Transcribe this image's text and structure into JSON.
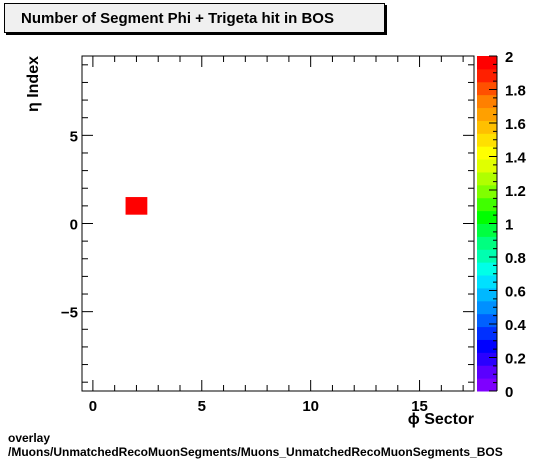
{
  "chart_data": {
    "type": "heatmap",
    "title": "Number of Segment Phi + Trigeta hit in BOS",
    "xlabel": "ϕ Sector",
    "ylabel": "η Index",
    "xlim": [
      -0.5,
      17.5
    ],
    "ylim": [
      -9.5,
      9.5
    ],
    "x_ticks": [
      0,
      5,
      10,
      15
    ],
    "y_ticks": [
      -5,
      0,
      5
    ],
    "bins": [
      {
        "x": 2,
        "y": 1,
        "value": 2
      }
    ],
    "z_range": [
      0,
      2
    ],
    "z_ticks": [
      0,
      0.2,
      0.4,
      0.6,
      0.8,
      1,
      1.2,
      1.4,
      1.6,
      1.8,
      2
    ],
    "palette": [
      "#7f00ff",
      "#5a00ff",
      "#2a00ff",
      "#0000ff",
      "#0030ff",
      "#0060ff",
      "#0090ff",
      "#00b8ff",
      "#00e0ff",
      "#00ffe8",
      "#00ffb0",
      "#00ff80",
      "#00ff40",
      "#00ff00",
      "#40ff00",
      "#80ff00",
      "#b0ff00",
      "#e0ff00",
      "#ffff00",
      "#ffe000",
      "#ffc000",
      "#ffa000",
      "#ff8000",
      "#ff5000",
      "#ff2000",
      "#ff0000"
    ],
    "legend": "colorbar-right"
  },
  "footer": {
    "line1": "overlay",
    "line2": "/Muons/UnmatchedRecoMuonSegments/Muons_UnmatchedRecoMuonSegments_BOS"
  }
}
